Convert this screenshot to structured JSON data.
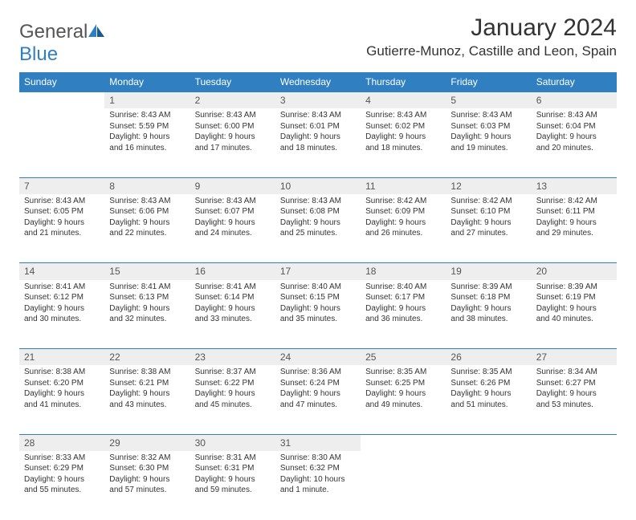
{
  "brand": {
    "part1": "General",
    "part2": "Blue"
  },
  "title": "January 2024",
  "location": "Gutierre-Munoz, Castille and Leon, Spain",
  "colors": {
    "header_bg": "#2f7fc1",
    "header_text": "#ffffff",
    "daynum_bg": "#eeeeee",
    "row_divider": "#2f7fc1",
    "body_text": "#333333",
    "logo_blue": "#2f7fc1"
  },
  "weekdays": [
    "Sunday",
    "Monday",
    "Tuesday",
    "Wednesday",
    "Thursday",
    "Friday",
    "Saturday"
  ],
  "weeks": [
    {
      "nums": [
        "",
        "1",
        "2",
        "3",
        "4",
        "5",
        "6"
      ],
      "cells": [
        null,
        {
          "sunrise": "Sunrise: 8:43 AM",
          "sunset": "Sunset: 5:59 PM",
          "daylight": "Daylight: 9 hours and 16 minutes."
        },
        {
          "sunrise": "Sunrise: 8:43 AM",
          "sunset": "Sunset: 6:00 PM",
          "daylight": "Daylight: 9 hours and 17 minutes."
        },
        {
          "sunrise": "Sunrise: 8:43 AM",
          "sunset": "Sunset: 6:01 PM",
          "daylight": "Daylight: 9 hours and 18 minutes."
        },
        {
          "sunrise": "Sunrise: 8:43 AM",
          "sunset": "Sunset: 6:02 PM",
          "daylight": "Daylight: 9 hours and 18 minutes."
        },
        {
          "sunrise": "Sunrise: 8:43 AM",
          "sunset": "Sunset: 6:03 PM",
          "daylight": "Daylight: 9 hours and 19 minutes."
        },
        {
          "sunrise": "Sunrise: 8:43 AM",
          "sunset": "Sunset: 6:04 PM",
          "daylight": "Daylight: 9 hours and 20 minutes."
        }
      ]
    },
    {
      "nums": [
        "7",
        "8",
        "9",
        "10",
        "11",
        "12",
        "13"
      ],
      "cells": [
        {
          "sunrise": "Sunrise: 8:43 AM",
          "sunset": "Sunset: 6:05 PM",
          "daylight": "Daylight: 9 hours and 21 minutes."
        },
        {
          "sunrise": "Sunrise: 8:43 AM",
          "sunset": "Sunset: 6:06 PM",
          "daylight": "Daylight: 9 hours and 22 minutes."
        },
        {
          "sunrise": "Sunrise: 8:43 AM",
          "sunset": "Sunset: 6:07 PM",
          "daylight": "Daylight: 9 hours and 24 minutes."
        },
        {
          "sunrise": "Sunrise: 8:43 AM",
          "sunset": "Sunset: 6:08 PM",
          "daylight": "Daylight: 9 hours and 25 minutes."
        },
        {
          "sunrise": "Sunrise: 8:42 AM",
          "sunset": "Sunset: 6:09 PM",
          "daylight": "Daylight: 9 hours and 26 minutes."
        },
        {
          "sunrise": "Sunrise: 8:42 AM",
          "sunset": "Sunset: 6:10 PM",
          "daylight": "Daylight: 9 hours and 27 minutes."
        },
        {
          "sunrise": "Sunrise: 8:42 AM",
          "sunset": "Sunset: 6:11 PM",
          "daylight": "Daylight: 9 hours and 29 minutes."
        }
      ]
    },
    {
      "nums": [
        "14",
        "15",
        "16",
        "17",
        "18",
        "19",
        "20"
      ],
      "cells": [
        {
          "sunrise": "Sunrise: 8:41 AM",
          "sunset": "Sunset: 6:12 PM",
          "daylight": "Daylight: 9 hours and 30 minutes."
        },
        {
          "sunrise": "Sunrise: 8:41 AM",
          "sunset": "Sunset: 6:13 PM",
          "daylight": "Daylight: 9 hours and 32 minutes."
        },
        {
          "sunrise": "Sunrise: 8:41 AM",
          "sunset": "Sunset: 6:14 PM",
          "daylight": "Daylight: 9 hours and 33 minutes."
        },
        {
          "sunrise": "Sunrise: 8:40 AM",
          "sunset": "Sunset: 6:15 PM",
          "daylight": "Daylight: 9 hours and 35 minutes."
        },
        {
          "sunrise": "Sunrise: 8:40 AM",
          "sunset": "Sunset: 6:17 PM",
          "daylight": "Daylight: 9 hours and 36 minutes."
        },
        {
          "sunrise": "Sunrise: 8:39 AM",
          "sunset": "Sunset: 6:18 PM",
          "daylight": "Daylight: 9 hours and 38 minutes."
        },
        {
          "sunrise": "Sunrise: 8:39 AM",
          "sunset": "Sunset: 6:19 PM",
          "daylight": "Daylight: 9 hours and 40 minutes."
        }
      ]
    },
    {
      "nums": [
        "21",
        "22",
        "23",
        "24",
        "25",
        "26",
        "27"
      ],
      "cells": [
        {
          "sunrise": "Sunrise: 8:38 AM",
          "sunset": "Sunset: 6:20 PM",
          "daylight": "Daylight: 9 hours and 41 minutes."
        },
        {
          "sunrise": "Sunrise: 8:38 AM",
          "sunset": "Sunset: 6:21 PM",
          "daylight": "Daylight: 9 hours and 43 minutes."
        },
        {
          "sunrise": "Sunrise: 8:37 AM",
          "sunset": "Sunset: 6:22 PM",
          "daylight": "Daylight: 9 hours and 45 minutes."
        },
        {
          "sunrise": "Sunrise: 8:36 AM",
          "sunset": "Sunset: 6:24 PM",
          "daylight": "Daylight: 9 hours and 47 minutes."
        },
        {
          "sunrise": "Sunrise: 8:35 AM",
          "sunset": "Sunset: 6:25 PM",
          "daylight": "Daylight: 9 hours and 49 minutes."
        },
        {
          "sunrise": "Sunrise: 8:35 AM",
          "sunset": "Sunset: 6:26 PM",
          "daylight": "Daylight: 9 hours and 51 minutes."
        },
        {
          "sunrise": "Sunrise: 8:34 AM",
          "sunset": "Sunset: 6:27 PM",
          "daylight": "Daylight: 9 hours and 53 minutes."
        }
      ]
    },
    {
      "nums": [
        "28",
        "29",
        "30",
        "31",
        "",
        "",
        ""
      ],
      "cells": [
        {
          "sunrise": "Sunrise: 8:33 AM",
          "sunset": "Sunset: 6:29 PM",
          "daylight": "Daylight: 9 hours and 55 minutes."
        },
        {
          "sunrise": "Sunrise: 8:32 AM",
          "sunset": "Sunset: 6:30 PM",
          "daylight": "Daylight: 9 hours and 57 minutes."
        },
        {
          "sunrise": "Sunrise: 8:31 AM",
          "sunset": "Sunset: 6:31 PM",
          "daylight": "Daylight: 9 hours and 59 minutes."
        },
        {
          "sunrise": "Sunrise: 8:30 AM",
          "sunset": "Sunset: 6:32 PM",
          "daylight": "Daylight: 10 hours and 1 minute."
        },
        null,
        null,
        null
      ]
    }
  ]
}
